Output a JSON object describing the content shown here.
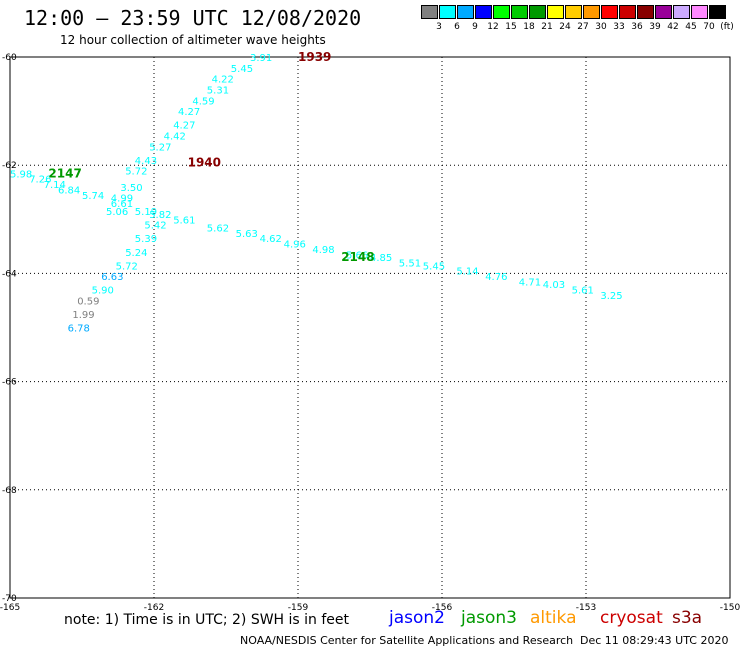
{
  "header": {
    "title": "12:00 – 23:59 UTC 12/08/2020",
    "subtitle": "12 hour collection of altimeter wave heights"
  },
  "scale": {
    "colors": [
      "#808080",
      "#00ffff",
      "#00aaff",
      "#0000ff",
      "#00ff00",
      "#00cc00",
      "#009900",
      "#ffff00",
      "#ffcc00",
      "#ff9900",
      "#ff0000",
      "#cc0000",
      "#880000",
      "#990099",
      "#ccaaff",
      "#ff88ff",
      "#000000"
    ],
    "labels": [
      "3",
      "6",
      "9",
      "12",
      "15",
      "18",
      "21",
      "24",
      "27",
      "30",
      "33",
      "36",
      "39",
      "42",
      "45",
      "70"
    ],
    "unit": "(ft)"
  },
  "axes": {
    "lon_ticks": [
      "-165",
      "-162",
      "-159",
      "-156",
      "-153",
      "-150"
    ],
    "lat_ticks": [
      "-60",
      "-62",
      "-64",
      "-66",
      "-68",
      "-70"
    ],
    "lon_range": [
      -165,
      -150
    ],
    "lat_range": [
      -60,
      -70
    ],
    "grid": "dotted"
  },
  "tracks": [
    {
      "label": "1939",
      "label_color": "#880000",
      "label_lon": -159.0,
      "label_lat": -60.0
    },
    {
      "label": "1940",
      "label_color": "#880000",
      "label_lon": -161.3,
      "label_lat": -61.95
    },
    {
      "label": "2147",
      "label_color": "#009900",
      "label_lon": -164.2,
      "label_lat": -62.15
    },
    {
      "label": "2148",
      "label_color": "#009900",
      "label_lon": -158.1,
      "label_lat": -63.7
    }
  ],
  "observations": [
    {
      "lon": -160.0,
      "lat": -60.0,
      "swh": "3.91",
      "color": "#00ffff"
    },
    {
      "lon": -160.4,
      "lat": -60.2,
      "swh": "5.45",
      "color": "#00ffff"
    },
    {
      "lon": -160.8,
      "lat": -60.4,
      "swh": "4.22",
      "color": "#00ffff"
    },
    {
      "lon": -160.9,
      "lat": -60.6,
      "swh": "5.31",
      "color": "#00ffff"
    },
    {
      "lon": -161.2,
      "lat": -60.8,
      "swh": "4.59",
      "color": "#00ffff"
    },
    {
      "lon": -161.5,
      "lat": -61.0,
      "swh": "4.27",
      "color": "#00ffff"
    },
    {
      "lon": -161.6,
      "lat": -61.25,
      "swh": "4.27",
      "color": "#00ffff"
    },
    {
      "lon": -161.8,
      "lat": -61.45,
      "swh": "4.42",
      "color": "#00ffff"
    },
    {
      "lon": -162.1,
      "lat": -61.65,
      "swh": "5.27",
      "color": "#00ffff"
    },
    {
      "lon": -162.4,
      "lat": -61.9,
      "swh": "4.43",
      "color": "#00ffff"
    },
    {
      "lon": -162.6,
      "lat": -62.1,
      "swh": "5.72",
      "color": "#00ffff"
    },
    {
      "lon": -162.7,
      "lat": -62.4,
      "swh": "3.50",
      "color": "#00ffff"
    },
    {
      "lon": -162.9,
      "lat": -62.6,
      "swh": "4.99",
      "color": "#00ffff"
    },
    {
      "lon": -163.0,
      "lat": -62.85,
      "swh": "5.06",
      "color": "#00ffff"
    },
    {
      "lon": -165.0,
      "lat": -62.15,
      "swh": "5.98",
      "color": "#00ffff"
    },
    {
      "lon": -164.6,
      "lat": -62.25,
      "swh": "7.26",
      "color": "#00ffff"
    },
    {
      "lon": -164.3,
      "lat": -62.35,
      "swh": "7.14",
      "color": "#00ffff"
    },
    {
      "lon": -164.0,
      "lat": -62.45,
      "swh": "6.84",
      "color": "#00ffff"
    },
    {
      "lon": -163.5,
      "lat": -62.55,
      "swh": "5.74",
      "color": "#00ffff"
    },
    {
      "lon": -162.9,
      "lat": -62.7,
      "swh": "6.61",
      "color": "#00ffff"
    },
    {
      "lon": -162.4,
      "lat": -62.85,
      "swh": "5.19",
      "color": "#00ffff"
    },
    {
      "lon": -162.1,
      "lat": -62.9,
      "swh": "5.82",
      "color": "#00ffff"
    },
    {
      "lon": -162.2,
      "lat": -63.1,
      "swh": "5.42",
      "color": "#00ffff"
    },
    {
      "lon": -162.4,
      "lat": -63.35,
      "swh": "5.39",
      "color": "#00ffff"
    },
    {
      "lon": -162.6,
      "lat": -63.6,
      "swh": "5.24",
      "color": "#00ffff"
    },
    {
      "lon": -162.8,
      "lat": -63.85,
      "swh": "5.72",
      "color": "#00ffff"
    },
    {
      "lon": -163.1,
      "lat": -64.05,
      "swh": "6.63",
      "color": "#00aaff"
    },
    {
      "lon": -163.3,
      "lat": -64.3,
      "swh": "5.90",
      "color": "#00ffff"
    },
    {
      "lon": -163.6,
      "lat": -64.5,
      "swh": "0.59",
      "color": "#808080"
    },
    {
      "lon": -163.7,
      "lat": -64.75,
      "swh": "1.99",
      "color": "#808080"
    },
    {
      "lon": -163.8,
      "lat": -65.0,
      "swh": "6.78",
      "color": "#00aaff"
    },
    {
      "lon": -161.6,
      "lat": -63.0,
      "swh": "5.61",
      "color": "#00ffff"
    },
    {
      "lon": -160.9,
      "lat": -63.15,
      "swh": "5.62",
      "color": "#00ffff"
    },
    {
      "lon": -160.3,
      "lat": -63.25,
      "swh": "5.63",
      "color": "#00ffff"
    },
    {
      "lon": -159.8,
      "lat": -63.35,
      "swh": "4.62",
      "color": "#00ffff"
    },
    {
      "lon": -159.3,
      "lat": -63.45,
      "swh": "4.96",
      "color": "#00ffff"
    },
    {
      "lon": -158.7,
      "lat": -63.55,
      "swh": "4.98",
      "color": "#00ffff"
    },
    {
      "lon": -158.0,
      "lat": -63.65,
      "swh": "5.66",
      "color": "#00ffff"
    },
    {
      "lon": -157.5,
      "lat": -63.7,
      "swh": "4.85",
      "color": "#00ffff"
    },
    {
      "lon": -156.9,
      "lat": -63.8,
      "swh": "5.51",
      "color": "#00ffff"
    },
    {
      "lon": -156.4,
      "lat": -63.85,
      "swh": "5.45",
      "color": "#00ffff"
    },
    {
      "lon": -155.7,
      "lat": -63.95,
      "swh": "5.14",
      "color": "#00ffff"
    },
    {
      "lon": -155.1,
      "lat": -64.05,
      "swh": "4.76",
      "color": "#00ffff"
    },
    {
      "lon": -154.4,
      "lat": -64.15,
      "swh": "4.71",
      "color": "#00ffff"
    },
    {
      "lon": -153.9,
      "lat": -64.2,
      "swh": "4.03",
      "color": "#00ffff"
    },
    {
      "lon": -153.3,
      "lat": -64.3,
      "swh": "5.61",
      "color": "#00ffff"
    },
    {
      "lon": -152.7,
      "lat": -64.4,
      "swh": "3.25",
      "color": "#00ffff"
    }
  ],
  "footer": {
    "note": "note: 1) Time is in UTC; 2) SWH is in feet",
    "satellites": [
      {
        "name": "jason2",
        "color": "#0000ff"
      },
      {
        "name": "jason3",
        "color": "#009900"
      },
      {
        "name": "altika",
        "color": "#ff9900"
      },
      {
        "name": "cryosat",
        "color": "#cc0000"
      },
      {
        "name": "s3a",
        "color": "#880000"
      }
    ],
    "credit": "NOAA/NESDIS Center for Satellite Applications and Research",
    "timestamp": "Dec 11 08:29:43 UTC 2020"
  }
}
